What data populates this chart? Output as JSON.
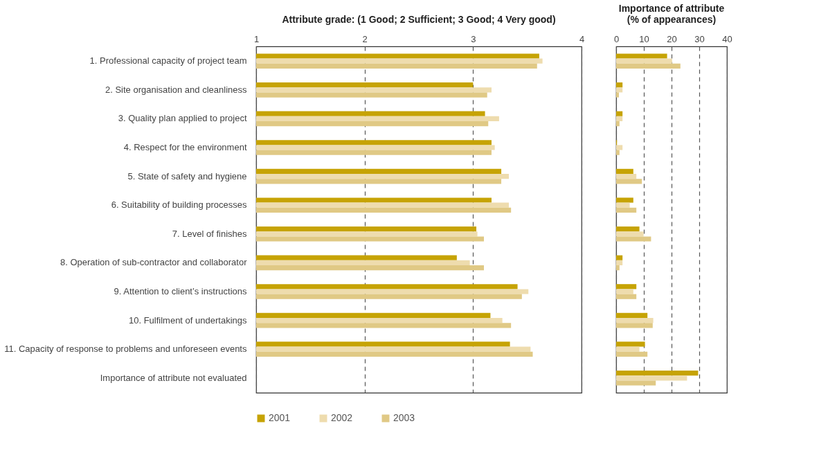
{
  "chart_data": [
    {
      "type": "bar",
      "orientation": "horizontal",
      "title": "Attribute grade: (1 Good; 2 Sufficient; 3 Good; 4 Very good)",
      "categories": [
        "1. Professional capacity of project team",
        "2. Site organisation and cleanliness",
        "3. Quality plan applied to project",
        "4. Respect for the environment",
        "5. State of safety and hygiene",
        "6. Suitability of building processes",
        "7. Level of finishes",
        "8. Operation of sub-contractor and collaborator",
        "9. Attention to client’s instructions",
        "10. Fulfilment of undertakings",
        "11. Capacity of response to problems and unforeseen events",
        "Importance of attribute not evaluated"
      ],
      "series": [
        {
          "name": "2001",
          "color": "#c6a304",
          "values": [
            3.61,
            3.0,
            3.11,
            3.17,
            3.26,
            3.17,
            3.03,
            2.85,
            3.41,
            3.16,
            3.34,
            null
          ]
        },
        {
          "name": "2002",
          "color": "#eedcae",
          "values": [
            3.64,
            3.17,
            3.24,
            3.2,
            3.33,
            3.33,
            3.04,
            2.97,
            3.51,
            3.27,
            3.53,
            null
          ]
        },
        {
          "name": "2003",
          "color": "#e0c985",
          "values": [
            3.59,
            3.13,
            3.14,
            3.17,
            3.26,
            3.35,
            3.1,
            3.1,
            3.45,
            3.35,
            3.55,
            null
          ]
        }
      ],
      "xlim": [
        1,
        4
      ],
      "xticks": [
        1,
        2,
        3,
        4
      ],
      "grid": "x",
      "legend": "bottom"
    },
    {
      "type": "bar",
      "orientation": "horizontal",
      "title": "Importance of attribute\n(% of appearances)",
      "categories": [
        null,
        null,
        null,
        null,
        null,
        null,
        null,
        null,
        null,
        null,
        null,
        null
      ],
      "series": [
        {
          "color": "#c6a304",
          "values": [
            18.4,
            2.3,
            2.3,
            0.3,
            6.2,
            6.2,
            8.4,
            2.3,
            7.3,
            11.3,
            10.4,
            29.6
          ]
        },
        {
          "color": "#eedcae",
          "values": [
            20.2,
            2.3,
            2.3,
            2.3,
            7.3,
            4.9,
            9.9,
            2.3,
            6.2,
            13.4,
            8.4,
            25.6
          ]
        },
        {
          "color": "#e0c985",
          "values": [
            23.2,
            1.0,
            1.2,
            1.2,
            9.3,
            7.3,
            12.6,
            1.2,
            7.3,
            13.2,
            11.3,
            14.3
          ]
        }
      ],
      "xlim": [
        0,
        40
      ],
      "xticks": [
        0,
        10,
        20,
        30,
        40
      ],
      "grid": "x",
      "tick_labels": "x"
    }
  ]
}
